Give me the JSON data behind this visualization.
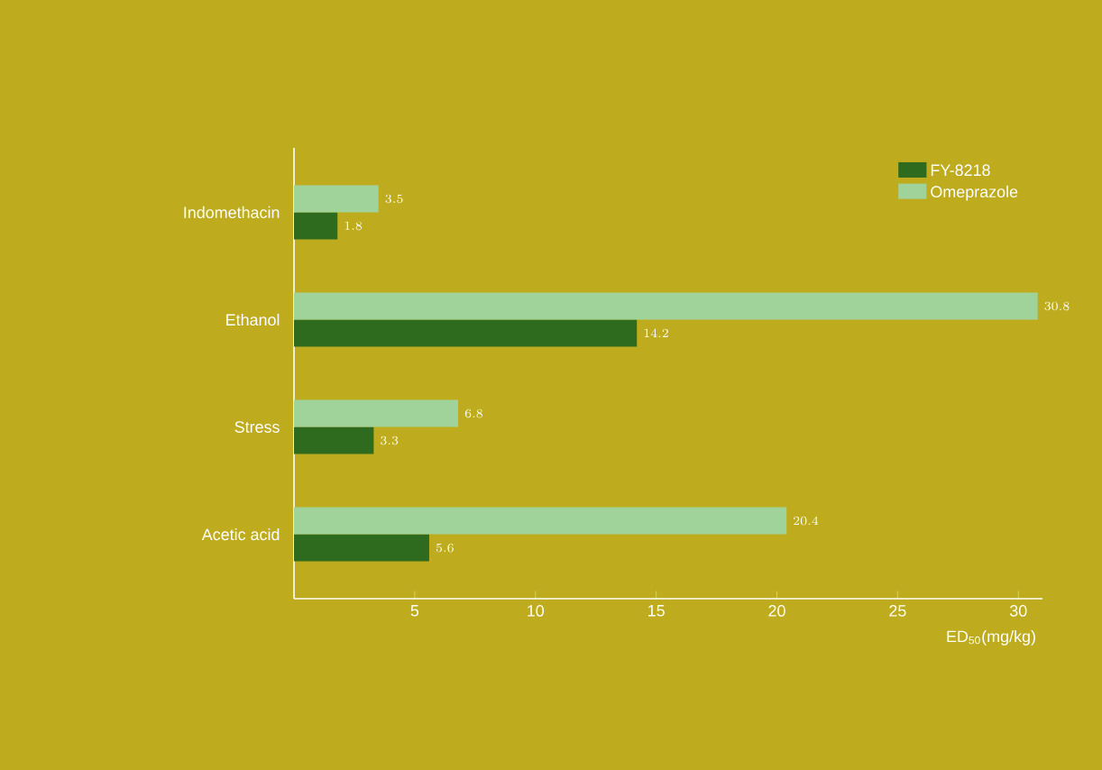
{
  "chart_data": {
    "type": "bar",
    "orientation": "horizontal",
    "categories": [
      "Indomethacin",
      "Ethanol",
      "Stress",
      "Acetic acid"
    ],
    "series": [
      {
        "name": "FY-8218",
        "color": "#2e6b1e",
        "values": [
          1.8,
          14.2,
          3.3,
          5.6
        ]
      },
      {
        "name": "Omeprazole",
        "color": "#9fd39a",
        "values": [
          3.5,
          30.8,
          6.8,
          20.4
        ]
      }
    ],
    "xlabel": "ED$_{50}$(mg/kg)",
    "xlim": [
      0,
      31
    ],
    "xticks": [
      5,
      10,
      15,
      20,
      25,
      30
    ],
    "data_labels": true,
    "legend": "top right",
    "grid": false
  }
}
